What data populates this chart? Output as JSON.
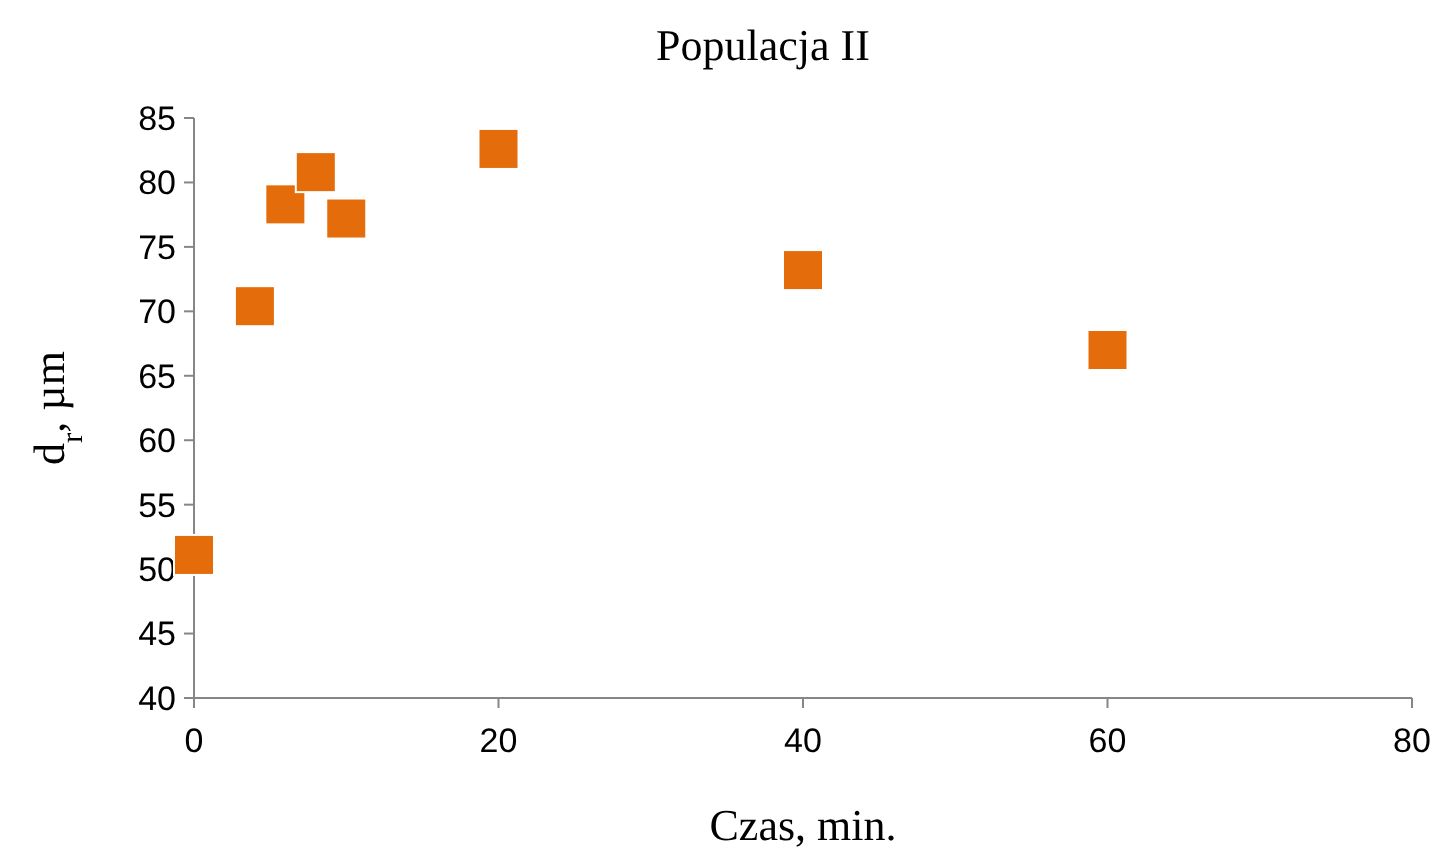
{
  "chart_data": {
    "type": "scatter",
    "title": "Populacja II",
    "xlabel": "Czas, min.",
    "ylabel": "d$_{r}$, µm",
    "x": [
      0,
      4,
      6,
      8,
      10,
      20,
      40,
      60
    ],
    "series": [
      {
        "color": "#e46c0a",
        "values": [
          51.1,
          70.4,
          78.3,
          80.8,
          77.2,
          82.6,
          73.2,
          67.0
        ]
      }
    ],
    "xlim": [
      0,
      80
    ],
    "xticks": [
      0,
      20,
      40,
      60,
      80
    ],
    "ylim": [
      40,
      85
    ],
    "yticks": [
      40,
      45,
      50,
      55,
      60,
      65,
      70,
      75,
      80,
      85
    ],
    "marker": "square",
    "grid": false
  }
}
